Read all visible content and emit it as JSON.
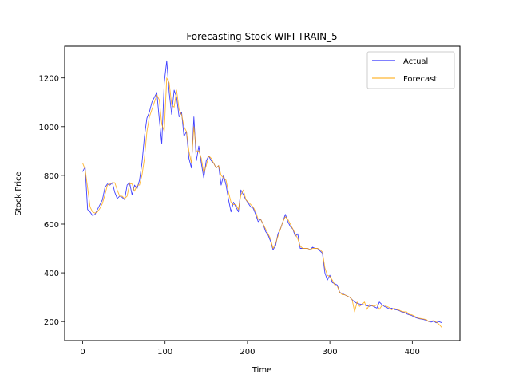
{
  "chart_data": {
    "type": "line",
    "title": "Forecasting Stock WIFI TRAIN_5",
    "xlabel": "Time",
    "ylabel": "Stock Price",
    "xlim": [
      -21.8,
      457.8
    ],
    "ylim": [
      122,
      1330
    ],
    "xticks": [
      0,
      100,
      200,
      300,
      400
    ],
    "yticks": [
      200,
      400,
      600,
      800,
      1000,
      1200
    ],
    "grid": false,
    "legend_position": "top-right",
    "series": [
      {
        "name": "Actual",
        "color": "#0000ff",
        "x": [
          0,
          3,
          6,
          9,
          12,
          15,
          18,
          21,
          24,
          27,
          30,
          33,
          36,
          39,
          42,
          45,
          48,
          51,
          54,
          57,
          60,
          63,
          66,
          69,
          72,
          75,
          78,
          81,
          84,
          87,
          90,
          93,
          96,
          99,
          102,
          105,
          108,
          111,
          114,
          117,
          120,
          123,
          126,
          129,
          132,
          135,
          138,
          141,
          144,
          147,
          150,
          153,
          156,
          159,
          162,
          165,
          168,
          171,
          174,
          177,
          180,
          183,
          186,
          189,
          192,
          195,
          198,
          201,
          204,
          207,
          210,
          213,
          216,
          219,
          222,
          225,
          228,
          231,
          234,
          237,
          240,
          243,
          246,
          249,
          252,
          255,
          258,
          261,
          264,
          267,
          270,
          273,
          276,
          279,
          282,
          285,
          288,
          291,
          294,
          297,
          300,
          303,
          306,
          309,
          312,
          315,
          318,
          321,
          324,
          327,
          330,
          333,
          336,
          339,
          342,
          345,
          348,
          351,
          354,
          357,
          360,
          363,
          366,
          369,
          372,
          375,
          378,
          381,
          384,
          387,
          390,
          393,
          396,
          399,
          402,
          405,
          408,
          411,
          414,
          417,
          420,
          423,
          426,
          429,
          432,
          436
        ],
        "values": [
          815,
          835,
          660,
          650,
          635,
          640,
          660,
          680,
          700,
          750,
          765,
          760,
          770,
          730,
          705,
          715,
          710,
          700,
          760,
          770,
          720,
          760,
          745,
          780,
          850,
          960,
          1035,
          1060,
          1100,
          1120,
          1140,
          1030,
          930,
          1180,
          1270,
          1140,
          1050,
          1150,
          1120,
          1040,
          1060,
          960,
          980,
          870,
          830,
          1040,
          860,
          920,
          850,
          790,
          860,
          880,
          860,
          850,
          830,
          840,
          760,
          800,
          760,
          700,
          650,
          690,
          670,
          650,
          740,
          720,
          700,
          685,
          670,
          665,
          640,
          610,
          620,
          600,
          570,
          555,
          530,
          495,
          510,
          560,
          580,
          610,
          640,
          610,
          590,
          580,
          550,
          560,
          500,
          500,
          500,
          500,
          495,
          505,
          500,
          500,
          490,
          480,
          400,
          370,
          390,
          360,
          355,
          350,
          320,
          315,
          310,
          305,
          300,
          290,
          280,
          275,
          272,
          270,
          268,
          265,
          262,
          265,
          260,
          255,
          280,
          270,
          262,
          258,
          252,
          255,
          250,
          248,
          245,
          240,
          238,
          232,
          228,
          225,
          220,
          215,
          212,
          210,
          208,
          205,
          200,
          198,
          202,
          195,
          200,
          195
        ]
      },
      {
        "name": "Forecast",
        "color": "#ffa500",
        "x": [
          0,
          3,
          6,
          9,
          12,
          15,
          18,
          21,
          24,
          27,
          30,
          33,
          36,
          39,
          42,
          45,
          48,
          51,
          54,
          57,
          60,
          63,
          66,
          69,
          72,
          75,
          78,
          81,
          84,
          87,
          90,
          93,
          96,
          99,
          102,
          105,
          108,
          111,
          114,
          117,
          120,
          123,
          126,
          129,
          132,
          135,
          138,
          141,
          144,
          147,
          150,
          153,
          156,
          159,
          162,
          165,
          168,
          171,
          174,
          177,
          180,
          183,
          186,
          189,
          192,
          195,
          198,
          201,
          204,
          207,
          210,
          213,
          216,
          219,
          222,
          225,
          228,
          231,
          234,
          237,
          240,
          243,
          246,
          249,
          252,
          255,
          258,
          261,
          264,
          267,
          270,
          273,
          276,
          279,
          282,
          285,
          288,
          291,
          294,
          297,
          300,
          303,
          306,
          309,
          312,
          315,
          318,
          321,
          324,
          327,
          330,
          333,
          336,
          339,
          342,
          345,
          348,
          351,
          354,
          357,
          360,
          363,
          366,
          369,
          372,
          375,
          378,
          381,
          384,
          387,
          390,
          393,
          396,
          399,
          402,
          405,
          408,
          411,
          414,
          417,
          420,
          423,
          426,
          429,
          432,
          436
        ],
        "values": [
          850,
          825,
          750,
          670,
          650,
          645,
          650,
          665,
          685,
          720,
          760,
          765,
          770,
          770,
          740,
          715,
          715,
          705,
          715,
          765,
          765,
          735,
          760,
          760,
          800,
          870,
          980,
          1040,
          1070,
          1100,
          1130,
          1110,
          1010,
          980,
          1200,
          1180,
          1090,
          1080,
          1150,
          1070,
          1050,
          1000,
          980,
          900,
          850,
          1000,
          900,
          900,
          870,
          810,
          840,
          880,
          870,
          850,
          830,
          840,
          800,
          790,
          780,
          730,
          690,
          680,
          680,
          660,
          720,
          740,
          700,
          690,
          680,
          670,
          650,
          620,
          620,
          600,
          580,
          560,
          540,
          500,
          520,
          550,
          580,
          610,
          630,
          620,
          600,
          580,
          560,
          540,
          510,
          500,
          500,
          500,
          495,
          500,
          500,
          500,
          495,
          485,
          420,
          390,
          385,
          370,
          350,
          345,
          320,
          310,
          310,
          305,
          300,
          290,
          240,
          280,
          262,
          270,
          280,
          250,
          270,
          265,
          262,
          270,
          250,
          265,
          268,
          262,
          258,
          248,
          255,
          250,
          247,
          242,
          240,
          240,
          230,
          228,
          224,
          218,
          214,
          212,
          210,
          208,
          200,
          202,
          204,
          198,
          190,
          175
        ]
      }
    ]
  }
}
